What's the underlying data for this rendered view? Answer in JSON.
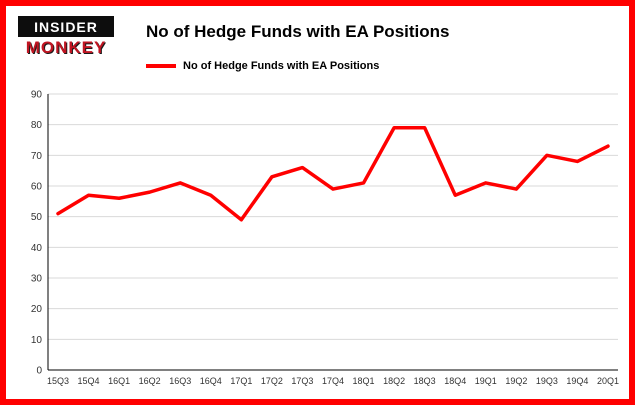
{
  "header": {
    "logo_line1": "INSIDER",
    "logo_line2": "MONKEY",
    "title": "No of Hedge Funds with EA Positions"
  },
  "legend": {
    "label": "No of Hedge Funds with EA Positions",
    "color": "#ff0000"
  },
  "chart_data": {
    "type": "line",
    "title": "No of Hedge Funds with EA Positions",
    "categories": [
      "15Q3",
      "15Q4",
      "16Q1",
      "16Q2",
      "16Q3",
      "16Q4",
      "17Q1",
      "17Q2",
      "17Q3",
      "17Q4",
      "18Q1",
      "18Q2",
      "18Q3",
      "18Q4",
      "19Q1",
      "19Q2",
      "19Q3",
      "19Q4",
      "20Q1"
    ],
    "values": [
      51,
      57,
      56,
      58,
      61,
      57,
      49,
      63,
      66,
      59,
      61,
      79,
      79,
      57,
      61,
      59,
      70,
      68,
      73
    ],
    "xlabel": "",
    "ylabel": "",
    "ylim": [
      0,
      90
    ],
    "ytick_step": 10,
    "grid": true,
    "line_color": "#ff0000",
    "line_width": 3.5,
    "legend_position": "top-left"
  },
  "colors": {
    "frame_border": "#ff0000",
    "gridline": "#d9d9d9",
    "axis": "#000000",
    "tick_text": "#333333"
  }
}
